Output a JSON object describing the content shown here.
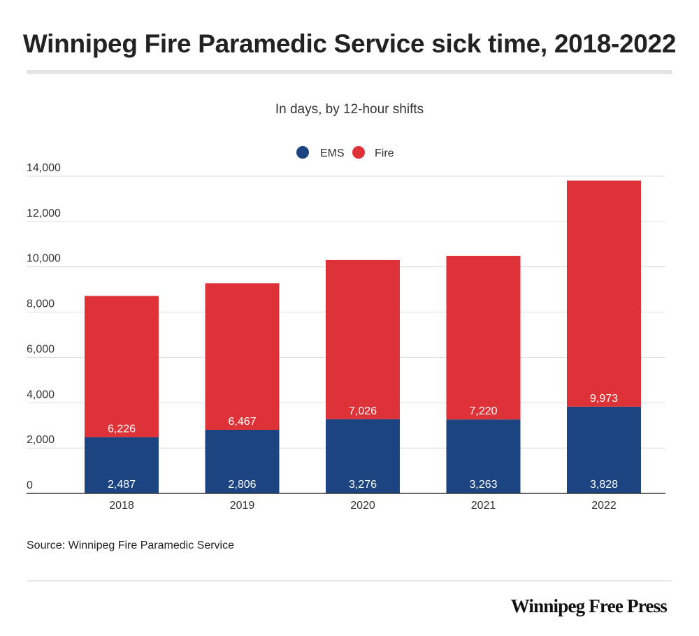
{
  "title": "Winnipeg Fire Paramedic Service sick time, 2018-2022",
  "subtitle": "In days, by 12-hour shifts",
  "source": "Source: Winnipeg Fire Paramedic Service",
  "brand": "Winnipeg Free Press",
  "colors": {
    "ems": "#1b4480",
    "fire": "#dc3238",
    "grid": "#dddddd",
    "axis": "#333333"
  },
  "chart_data": {
    "type": "bar",
    "stacked": true,
    "categories": [
      "2018",
      "2019",
      "2020",
      "2021",
      "2022"
    ],
    "series": [
      {
        "name": "EMS",
        "values": [
          2487,
          2806,
          3276,
          3263,
          3828
        ],
        "labels": [
          "2,487",
          "2,806",
          "3,276",
          "3,263",
          "3,828"
        ],
        "color": "#1b4480"
      },
      {
        "name": "Fire",
        "values": [
          6226,
          6467,
          7026,
          7220,
          9973
        ],
        "labels": [
          "6,226",
          "6,467",
          "7,026",
          "7,220",
          "9,973"
        ],
        "color": "#dc3238"
      }
    ],
    "yticks": [
      0,
      2000,
      4000,
      6000,
      8000,
      10000,
      12000,
      14000
    ],
    "ytick_labels": [
      "0",
      "2,000",
      "4,000",
      "6,000",
      "8,000",
      "10,000",
      "12,000",
      "14,000"
    ],
    "ylim": [
      0,
      14000
    ],
    "grid": true,
    "legend": "top-center"
  }
}
